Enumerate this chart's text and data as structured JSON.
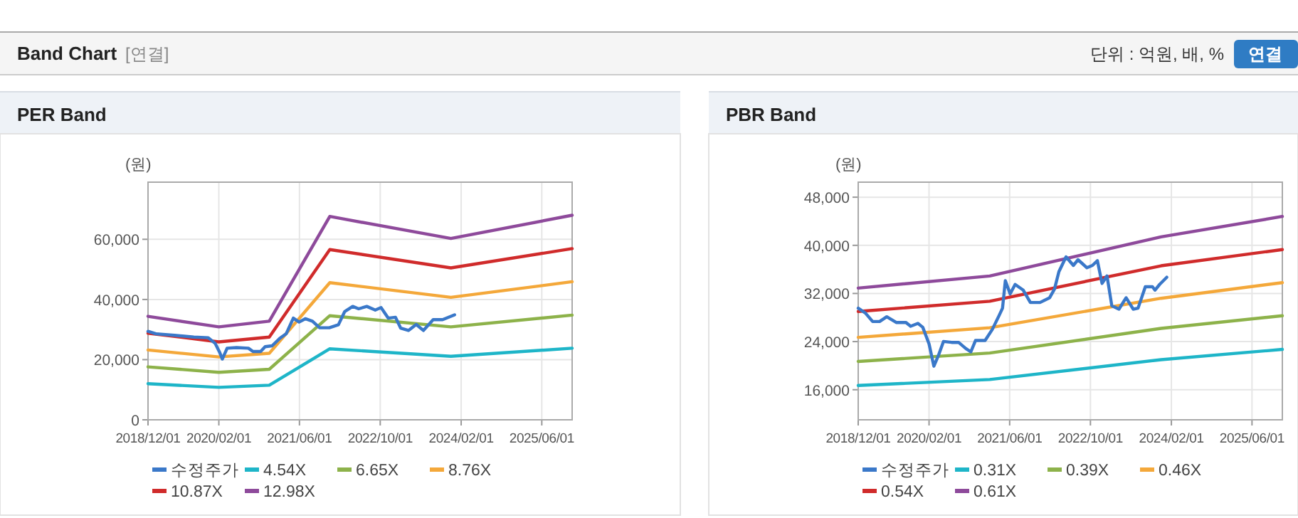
{
  "chart_data": [
    {
      "type": "other",
      "title": "Band Chart",
      "annotations": [
        "[연결]",
        "단위 : 억원, 배, %",
        "연결"
      ]
    },
    {
      "type": "line",
      "title": "PER Band",
      "ylabel": "(원)",
      "grid": true,
      "legend": "bottom",
      "xlim": [
        "2018-12-01",
        "2025-12-01"
      ],
      "xticks": [
        {
          "value": "2018-12-01",
          "label": "2018/12/01"
        },
        {
          "value": "2020-02-01",
          "label": "2020/02/01"
        },
        {
          "value": "2021-06-01",
          "label": "2021/06/01"
        },
        {
          "value": "2022-10-01",
          "label": "2022/10/01"
        },
        {
          "value": "2024-02-01",
          "label": "2024/02/01"
        },
        {
          "value": "2025-06-01",
          "label": "2025/06/01"
        }
      ],
      "ylim": [
        0,
        79000
      ],
      "yticks": [
        0,
        {
          "value": 20000,
          "label": "20,000"
        },
        {
          "value": 40000,
          "label": "40,000"
        },
        {
          "value": 60000,
          "label": "60,000"
        }
      ],
      "series": [
        {
          "name": "수정주가",
          "color": "#3a78c9",
          "x": [
            "2018-12-01",
            "2019-01-18",
            "2019-05-10",
            "2019-09-03",
            "2019-11-28",
            "2020-01-10",
            "2020-02-07",
            "2020-02-22",
            "2020-03-22",
            "2020-05-18",
            "2020-07-28",
            "2020-08-25",
            "2020-10-10",
            "2020-11-06",
            "2020-12-18",
            "2021-02-01",
            "2021-03-13",
            "2021-04-25",
            "2021-05-30",
            "2021-07-06",
            "2021-08-18",
            "2021-10-01",
            "2021-11-28",
            "2022-01-22",
            "2022-03-01",
            "2022-04-18",
            "2022-05-24",
            "2022-07-12",
            "2022-09-01",
            "2022-10-06",
            "2022-11-18",
            "2023-01-01",
            "2023-02-01",
            "2023-03-20",
            "2023-05-06",
            "2023-06-18",
            "2023-08-16",
            "2023-10-12",
            "2023-12-23"
          ],
          "values": [
            29400,
            28600,
            28100,
            27500,
            27300,
            25400,
            22300,
            20200,
            23800,
            24000,
            23800,
            22700,
            22700,
            24300,
            24600,
            27000,
            28600,
            33800,
            32500,
            33600,
            32800,
            30600,
            30600,
            31600,
            36000,
            37700,
            36900,
            37700,
            36500,
            37300,
            33800,
            34100,
            30500,
            29700,
            31700,
            29700,
            33300,
            33300,
            34900
          ]
        },
        {
          "name": "4.54X",
          "color": "#1eb5c8",
          "x": [
            "2018-12-01",
            "2020-02-01",
            "2020-12-01",
            "2021-12-01",
            "2023-12-01",
            "2025-12-01"
          ],
          "values": [
            12000,
            10800,
            11500,
            23600,
            21100,
            23800
          ]
        },
        {
          "name": "6.65X",
          "color": "#8db24a",
          "x": [
            "2018-12-01",
            "2020-02-01",
            "2020-12-01",
            "2021-12-01",
            "2023-12-01",
            "2025-12-01"
          ],
          "values": [
            17600,
            15800,
            16800,
            34600,
            30900,
            34800
          ]
        },
        {
          "name": "8.76X",
          "color": "#f4a83a",
          "x": [
            "2018-12-01",
            "2020-02-01",
            "2020-12-01",
            "2021-12-01",
            "2023-12-01",
            "2025-12-01"
          ],
          "values": [
            23200,
            20900,
            22100,
            45600,
            40700,
            45900
          ]
        },
        {
          "name": "10.87X",
          "color": "#d02b2b",
          "x": [
            "2018-12-01",
            "2020-02-01",
            "2020-12-01",
            "2021-12-01",
            "2023-12-01",
            "2025-12-01"
          ],
          "values": [
            28800,
            25900,
            27500,
            56600,
            50500,
            56900
          ]
        },
        {
          "name": "12.98X",
          "color": "#8e4a9b",
          "x": [
            "2018-12-01",
            "2020-02-01",
            "2020-12-01",
            "2021-12-01",
            "2023-12-01",
            "2025-12-01"
          ],
          "values": [
            34400,
            30900,
            32800,
            67600,
            60300,
            68000
          ]
        }
      ]
    },
    {
      "type": "line",
      "title": "PBR Band",
      "ylabel": "(원)",
      "grid": true,
      "legend": "bottom",
      "xlim": [
        "2018-12-01",
        "2025-12-01"
      ],
      "xticks": [
        {
          "value": "2018-12-01",
          "label": "2018/12/01"
        },
        {
          "value": "2020-02-01",
          "label": "2020/02/01"
        },
        {
          "value": "2021-06-01",
          "label": "2021/06/01"
        },
        {
          "value": "2022-10-01",
          "label": "2022/10/01"
        },
        {
          "value": "2024-02-01",
          "label": "2024/02/01"
        },
        {
          "value": "2025-06-01",
          "label": "2025/06/01"
        }
      ],
      "ylim": [
        11000,
        50500
      ],
      "yticks": [
        {
          "value": 16000,
          "label": "16,000"
        },
        {
          "value": 24000,
          "label": "24,000"
        },
        {
          "value": 32000,
          "label": "32,000"
        },
        {
          "value": 40000,
          "label": "40,000"
        },
        {
          "value": 48000,
          "label": "48,000"
        }
      ],
      "series": [
        {
          "name": "수정주가",
          "color": "#3a78c9",
          "x": [
            "2018-12-01",
            "2019-01-13",
            "2019-02-26",
            "2019-04-09",
            "2019-05-22",
            "2019-07-18",
            "2019-09-15",
            "2019-10-13",
            "2019-11-26",
            "2019-12-25",
            "2020-02-01",
            "2020-03-01",
            "2020-03-28",
            "2020-04-28",
            "2020-06-16",
            "2020-07-28",
            "2020-09-10",
            "2020-10-10",
            "2020-11-07",
            "2021-01-04",
            "2021-02-16",
            "2021-03-30",
            "2021-04-19",
            "2021-05-06",
            "2021-06-04",
            "2021-07-04",
            "2021-08-22",
            "2021-10-04",
            "2021-12-01",
            "2022-01-28",
            "2022-02-26",
            "2022-03-25",
            "2022-05-07",
            "2022-06-20",
            "2022-07-18",
            "2022-09-10",
            "2022-10-13",
            "2022-11-12",
            "2022-12-10",
            "2023-01-09",
            "2023-02-07",
            "2023-03-22",
            "2023-05-04",
            "2023-06-16",
            "2023-07-15",
            "2023-08-28",
            "2023-10-10",
            "2023-10-25",
            "2023-11-22",
            "2024-01-04"
          ],
          "values": [
            29550,
            28760,
            27340,
            27340,
            28130,
            27180,
            27180,
            26550,
            27020,
            26390,
            23630,
            19910,
            21650,
            24020,
            23870,
            23870,
            22840,
            22290,
            24180,
            24180,
            26000,
            28370,
            29550,
            34130,
            31920,
            33500,
            32550,
            30500,
            30500,
            31290,
            32710,
            35630,
            38080,
            36660,
            37610,
            36270,
            36660,
            37450,
            33660,
            34920,
            29950,
            29390,
            31290,
            29390,
            29550,
            33110,
            33110,
            32550,
            33500,
            34690
          ]
        },
        {
          "name": "0.31X",
          "color": "#1eb5c8",
          "x": [
            "2018-12-01",
            "2021-02-01",
            "2023-12-01",
            "2025-12-01"
          ],
          "values": [
            16700,
            17700,
            21000,
            22700
          ]
        },
        {
          "name": "0.39X",
          "color": "#8db24a",
          "x": [
            "2018-12-01",
            "2021-02-01",
            "2023-12-01",
            "2025-12-01"
          ],
          "values": [
            20700,
            22100,
            26200,
            28300
          ]
        },
        {
          "name": "0.46X",
          "color": "#f4a83a",
          "x": [
            "2018-12-01",
            "2021-02-01",
            "2023-12-01",
            "2025-12-01"
          ],
          "values": [
            24700,
            26300,
            31200,
            33800
          ]
        },
        {
          "name": "0.54X",
          "color": "#d02b2b",
          "x": [
            "2018-12-01",
            "2021-02-01",
            "2023-12-01",
            "2025-12-01"
          ],
          "values": [
            29000,
            30700,
            36600,
            39300
          ]
        },
        {
          "name": "0.61X",
          "color": "#8e4a9b",
          "x": [
            "2018-12-01",
            "2021-02-01",
            "2023-12-01",
            "2025-12-01"
          ],
          "values": [
            32900,
            34900,
            41400,
            44800
          ]
        }
      ]
    }
  ]
}
